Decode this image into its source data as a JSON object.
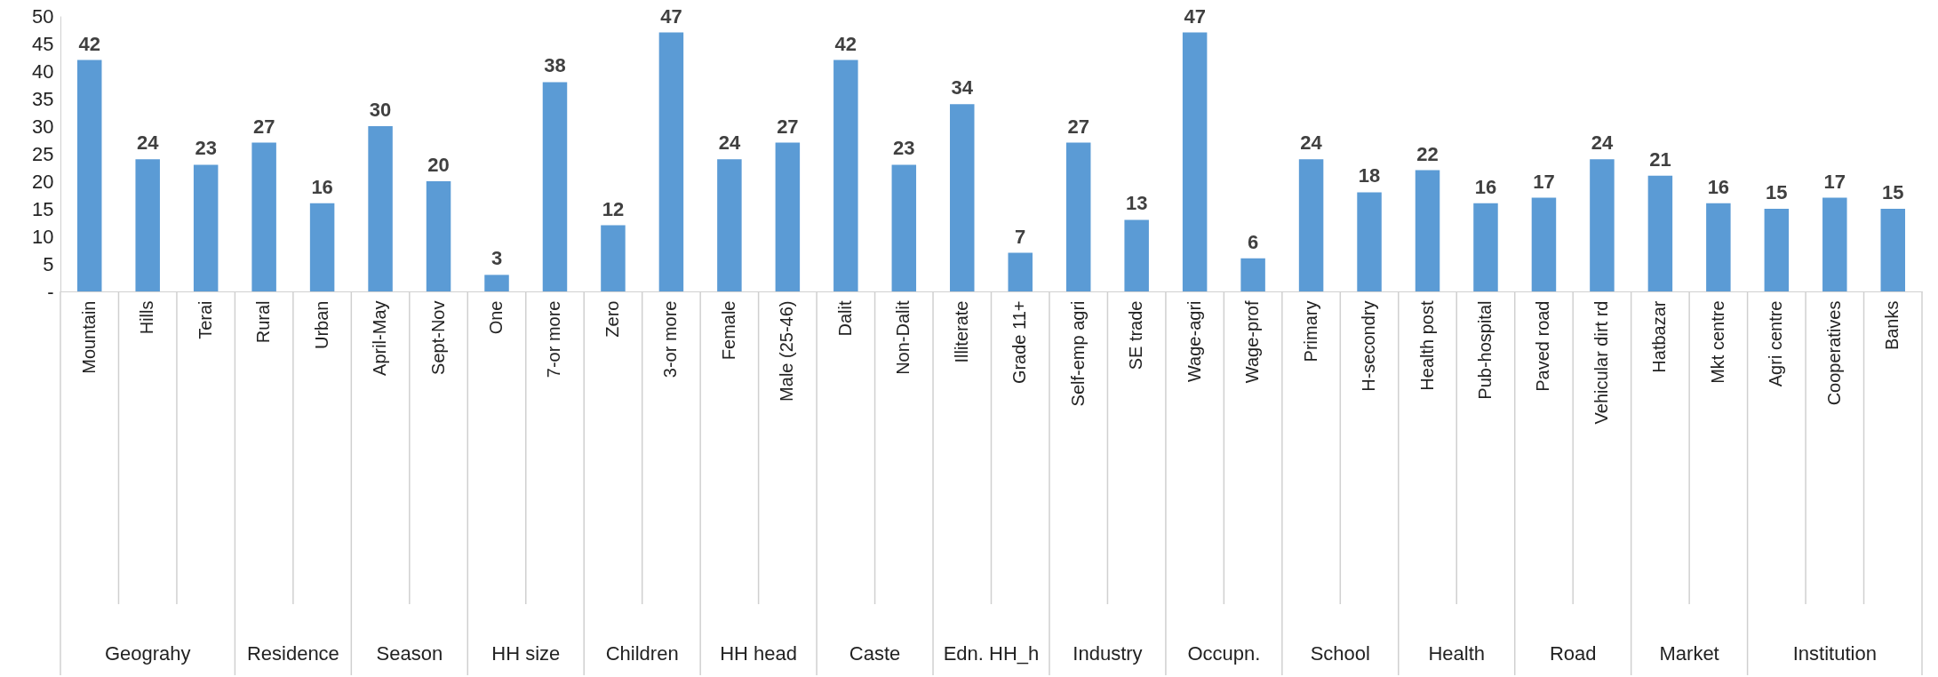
{
  "chart_data": {
    "type": "bar",
    "categories": [
      "Mountain",
      "Hills",
      "Terai",
      "Rural",
      "Urban",
      "April-May",
      "Sept-Nov",
      "One",
      "7-or more",
      "Zero",
      "3-or more",
      "Female",
      "Male (25-46)",
      "Dalit",
      "Non-Dalit",
      "Illiterate",
      "Grade 11+",
      "Self-emp agri",
      "SE trade",
      "Wage-agri",
      "Wage-prof",
      "Primary",
      "H-secondry",
      "Health post",
      "Pub-hospital",
      "Paved road",
      "Vehicular dirt rd",
      "Hatbazar",
      "Mkt centre",
      "Agri centre",
      "Cooperatives",
      "Banks"
    ],
    "values": [
      42,
      24,
      23,
      27,
      16,
      30,
      20,
      3,
      38,
      12,
      47,
      24,
      27,
      42,
      23,
      34,
      7,
      27,
      13,
      47,
      6,
      24,
      18,
      22,
      16,
      17,
      24,
      21,
      16,
      15,
      17,
      15
    ],
    "color": "#5b9bd5",
    "ylim": [
      0,
      50
    ],
    "yticks": [
      {
        "value": 0,
        "label": "-"
      },
      5,
      10,
      15,
      20,
      25,
      30,
      35,
      40,
      45,
      50
    ],
    "data_labels": true,
    "annotations": [
      "Geograhy",
      "Residence",
      "Season",
      "HH size",
      "Children",
      "HH head",
      "Caste",
      "Edn. HH_h",
      "Industry",
      "Occupn.",
      "School",
      "Health",
      "Road",
      "Market",
      "Institution"
    ]
  }
}
